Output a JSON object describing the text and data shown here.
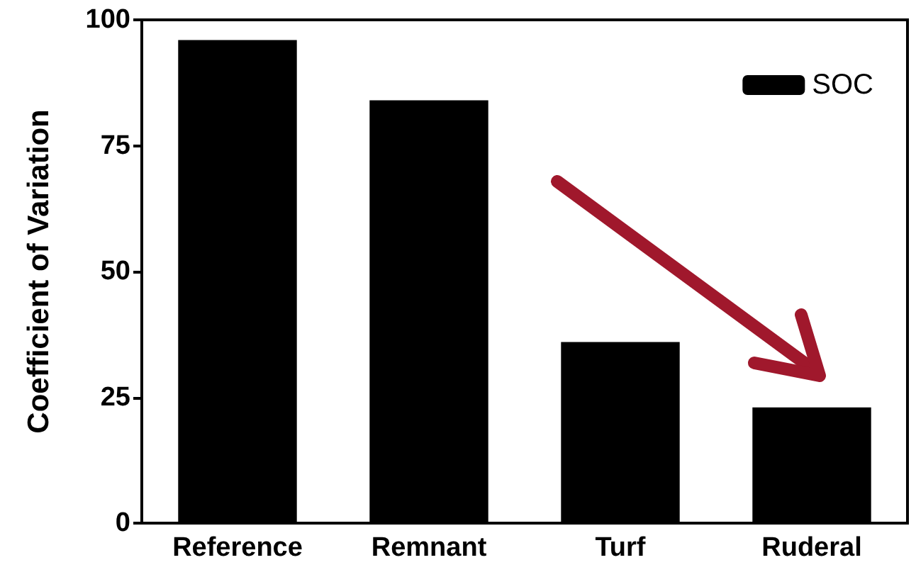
{
  "chart_data": {
    "type": "bar",
    "ylabel": "Coefficient of Variation",
    "categories": [
      "Reference",
      "Remnant",
      "Turf",
      "Ruderal"
    ],
    "series": [
      {
        "name": "SOC",
        "color": "#000000",
        "values": [
          96,
          84,
          36,
          23
        ]
      }
    ],
    "ylim": [
      0,
      100
    ],
    "yticks": [
      0,
      25,
      50,
      75,
      100
    ],
    "grid": false,
    "legend": "top right"
  }
}
